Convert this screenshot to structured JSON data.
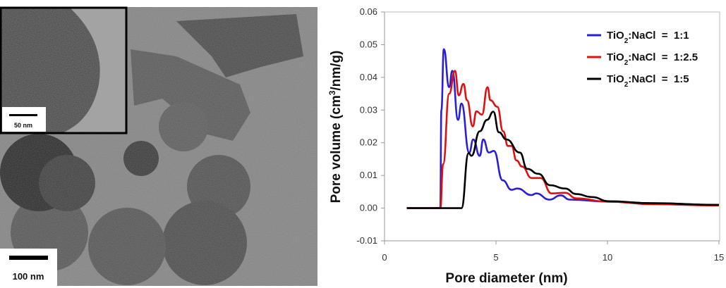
{
  "micrograph": {
    "main_scale_bar": "100 nm",
    "inset_scale_bar": "50 nm"
  },
  "colors": {
    "series_1": "#2a1fd6",
    "series_2": "#e01010",
    "series_3": "#000000"
  },
  "chart_data": {
    "type": "line",
    "xlabel": "Pore diameter (nm)",
    "ylabel_parts": [
      "Pore volume (cm",
      "3",
      "/nm/g)"
    ],
    "xlim": [
      0,
      15
    ],
    "ylim": [
      -0.01,
      0.06
    ],
    "xticks": [
      "0",
      "5",
      "10",
      "15"
    ],
    "yticks": [
      "-0.01",
      "0.00",
      "0.01",
      "0.02",
      "0.03",
      "0.04",
      "0.05",
      "0.06"
    ],
    "grid": false,
    "legend_position": "top-right",
    "series": [
      {
        "name": "TiO2:NaCl = 1:1",
        "label_parts": [
          "TiO",
          "2",
          ":NaCl  =  1:1"
        ],
        "color": "#2a1fd6",
        "x": [
          1.0,
          2.5,
          2.55,
          2.66,
          2.9,
          3.04,
          3.3,
          3.45,
          3.8,
          3.98,
          4.27,
          4.43,
          4.68,
          4.9,
          5.3,
          5.7,
          5.95,
          6.6,
          6.8,
          7.4,
          7.9,
          8.3,
          10,
          12,
          15
        ],
        "y": [
          0,
          0,
          0.03,
          0.0486,
          0.037,
          0.042,
          0.027,
          0.032,
          0.017,
          0.021,
          0.016,
          0.021,
          0.017,
          0.0175,
          0.0085,
          0.0056,
          0.006,
          0.004,
          0.0045,
          0.0026,
          0.0039,
          0.0026,
          0.002,
          0.0015,
          0.001
        ]
      },
      {
        "name": "TiO2:NaCl = 1:2.5",
        "label_parts": [
          "TiO",
          "2",
          ":NaCl  =  1:2.5"
        ],
        "color": "#e01010",
        "x": [
          1.0,
          2.5,
          2.63,
          2.9,
          3.16,
          3.33,
          3.54,
          3.7,
          3.96,
          4.12,
          4.37,
          4.62,
          4.75,
          5.06,
          5.32,
          5.54,
          5.7,
          5.92,
          6.17,
          6.6,
          7.0,
          7.5,
          8.1,
          8.6,
          10,
          12,
          15
        ],
        "y": [
          0,
          0,
          0.0135,
          0.035,
          0.042,
          0.0345,
          0.038,
          0.033,
          0.025,
          0.0296,
          0.0286,
          0.037,
          0.033,
          0.031,
          0.0235,
          0.019,
          0.019,
          0.0146,
          0.0127,
          0.0092,
          0.0092,
          0.0045,
          0.0047,
          0.003,
          0.002,
          0.0012,
          0.0008
        ]
      },
      {
        "name": "TiO2:NaCl = 1:5",
        "label_parts": [
          "TiO",
          "2",
          ":NaCl  =  1:5"
        ],
        "color": "#000000",
        "x": [
          1.0,
          3.45,
          3.77,
          3.9,
          4.27,
          4.6,
          4.88,
          5.13,
          5.47,
          6.07,
          6.4,
          6.9,
          7.43,
          8.1,
          8.6,
          9.3,
          10.06,
          12,
          15
        ],
        "y": [
          0,
          0,
          0.0168,
          0.016,
          0.0235,
          0.027,
          0.0295,
          0.0232,
          0.021,
          0.017,
          0.012,
          0.0105,
          0.007,
          0.006,
          0.0043,
          0.0034,
          0.0021,
          0.0015,
          0.001
        ]
      }
    ]
  }
}
